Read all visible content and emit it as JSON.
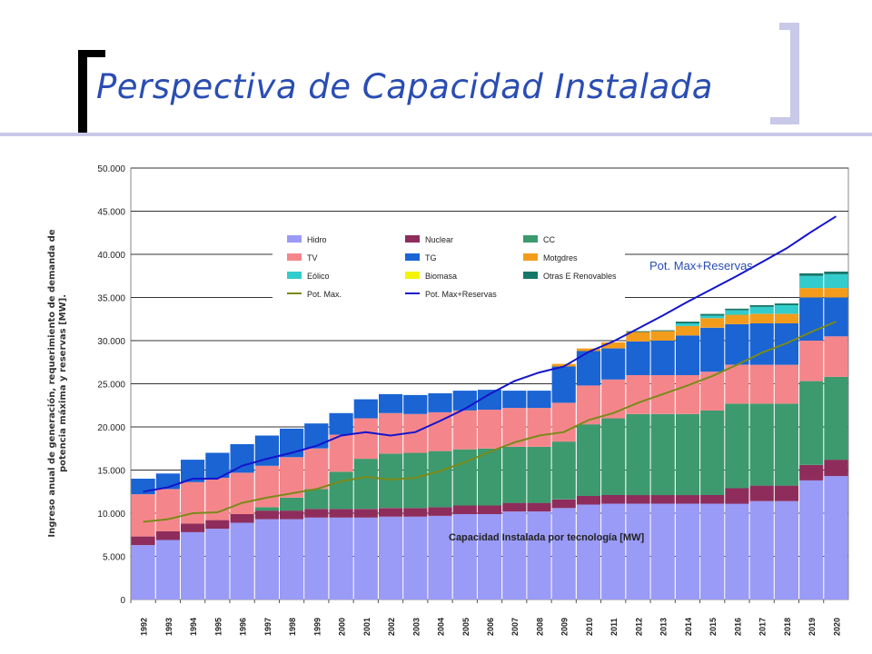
{
  "slide": {
    "title": "Perspectiva de Capacidad Instalada"
  },
  "chart_data": {
    "type": "bar",
    "stacked": true,
    "ylabel_line1": "Ingreso anual de generación, requerimiento de demanda de",
    "ylabel_line2": "potencia máxima y reservas [MW].",
    "annotation": "Capacidad Instalada por tecnología [MW]",
    "line_label": "Pot. Max+Reservas",
    "ylim": [
      0,
      50000
    ],
    "y_ticks": [
      "0",
      "5.000",
      "10.000",
      "15.000",
      "20.000",
      "25.000",
      "30.000",
      "35.000",
      "40.000",
      "45.000",
      "50.000"
    ],
    "grid": true,
    "legend_position": "top-center",
    "categories": [
      "1992",
      "1993",
      "1994",
      "1995",
      "1996",
      "1997",
      "1998",
      "1999",
      "2000",
      "2001",
      "2002",
      "2003",
      "2004",
      "2005",
      "2006",
      "2007",
      "2008",
      "2009",
      "2010",
      "2011",
      "2012",
      "2013",
      "2014",
      "2015",
      "2016",
      "2017",
      "2018",
      "2019",
      "2020"
    ],
    "series": [
      {
        "name": "Hidro",
        "color": "#9a9af7",
        "values": [
          6300,
          6900,
          7800,
          8200,
          8900,
          9300,
          9300,
          9500,
          9500,
          9500,
          9600,
          9600,
          9700,
          9900,
          9900,
          10200,
          10200,
          10600,
          11000,
          11100,
          11100,
          11100,
          11100,
          11100,
          11100,
          11400,
          11400,
          13800,
          14300
        ]
      },
      {
        "name": "Nuclear",
        "color": "#8e2d5c",
        "values": [
          1000,
          1000,
          1000,
          1000,
          1000,
          1000,
          1000,
          1000,
          1000,
          1000,
          1000,
          1000,
          1000,
          1000,
          1000,
          1000,
          1000,
          1000,
          1000,
          1000,
          1000,
          1000,
          1000,
          1000,
          1800,
          1800,
          1800,
          1800,
          1900
        ]
      },
      {
        "name": "CC",
        "color": "#3c9a6e",
        "values": [
          0,
          0,
          0,
          0,
          0,
          400,
          1500,
          2300,
          4300,
          5800,
          6300,
          6400,
          6500,
          6500,
          6600,
          6500,
          6500,
          6700,
          8300,
          8900,
          9400,
          9400,
          9400,
          9800,
          9800,
          9500,
          9500,
          9700,
          9600
        ]
      },
      {
        "name": "TV",
        "color": "#f4868b",
        "values": [
          4900,
          4900,
          4800,
          4900,
          4800,
          4800,
          4700,
          4700,
          4300,
          4700,
          4700,
          4500,
          4500,
          4500,
          4500,
          4500,
          4500,
          4500,
          4500,
          4500,
          4500,
          4500,
          4500,
          4500,
          4500,
          4500,
          4500,
          4700,
          4700
        ]
      },
      {
        "name": "TG",
        "color": "#1a64d4",
        "values": [
          1800,
          1800,
          2600,
          2900,
          3300,
          3500,
          3300,
          2900,
          2500,
          2200,
          2200,
          2200,
          2200,
          2300,
          2300,
          2000,
          2000,
          4200,
          4000,
          3600,
          3900,
          4000,
          4600,
          5100,
          4700,
          4800,
          4800,
          5000,
          4500
        ]
      },
      {
        "name": "Motgdres",
        "color": "#f39c1c",
        "values": [
          0,
          0,
          0,
          0,
          0,
          0,
          0,
          0,
          0,
          0,
          0,
          0,
          0,
          0,
          0,
          0,
          0,
          300,
          300,
          700,
          1100,
          1100,
          1100,
          1100,
          1100,
          1100,
          1100,
          1100,
          1100
        ]
      },
      {
        "name": "Eólico",
        "color": "#33cccc",
        "values": [
          0,
          0,
          0,
          0,
          0,
          0,
          0,
          0,
          0,
          0,
          0,
          0,
          0,
          0,
          0,
          0,
          0,
          0,
          0,
          0,
          0,
          0,
          300,
          300,
          500,
          800,
          1000,
          1400,
          1600
        ]
      },
      {
        "name": "Biomasa",
        "color": "#f4f400",
        "values": [
          0,
          0,
          0,
          0,
          0,
          0,
          0,
          0,
          0,
          0,
          0,
          0,
          0,
          0,
          0,
          0,
          0,
          0,
          0,
          0,
          0,
          0,
          0,
          0,
          0,
          0,
          0,
          0,
          0
        ]
      },
      {
        "name": "Otras E Renovables",
        "color": "#15776a",
        "values": [
          0,
          0,
          0,
          0,
          0,
          0,
          0,
          0,
          0,
          0,
          0,
          0,
          0,
          0,
          0,
          0,
          0,
          0,
          0,
          0,
          100,
          100,
          200,
          200,
          200,
          200,
          200,
          300,
          300
        ]
      }
    ],
    "lines": [
      {
        "name": "Pot. Max.",
        "color": "#7a8a1a",
        "values": [
          9000,
          9300,
          10000,
          10100,
          11200,
          11800,
          12300,
          12800,
          13700,
          14200,
          13900,
          14100,
          14900,
          15900,
          17100,
          18200,
          19000,
          19400,
          20800,
          21600,
          22800,
          23800,
          24800,
          25900,
          27200,
          28600,
          29700,
          31000,
          32200
        ]
      },
      {
        "name": "Pot. Max+Reservas",
        "color": "#1414cc",
        "values": [
          12500,
          13000,
          14000,
          14000,
          15500,
          16300,
          17000,
          17800,
          19000,
          19400,
          19000,
          19400,
          20700,
          22100,
          23800,
          25300,
          26300,
          27000,
          28700,
          29900,
          31400,
          32900,
          34500,
          36000,
          37500,
          39100,
          40700,
          42600,
          44400
        ]
      }
    ]
  }
}
